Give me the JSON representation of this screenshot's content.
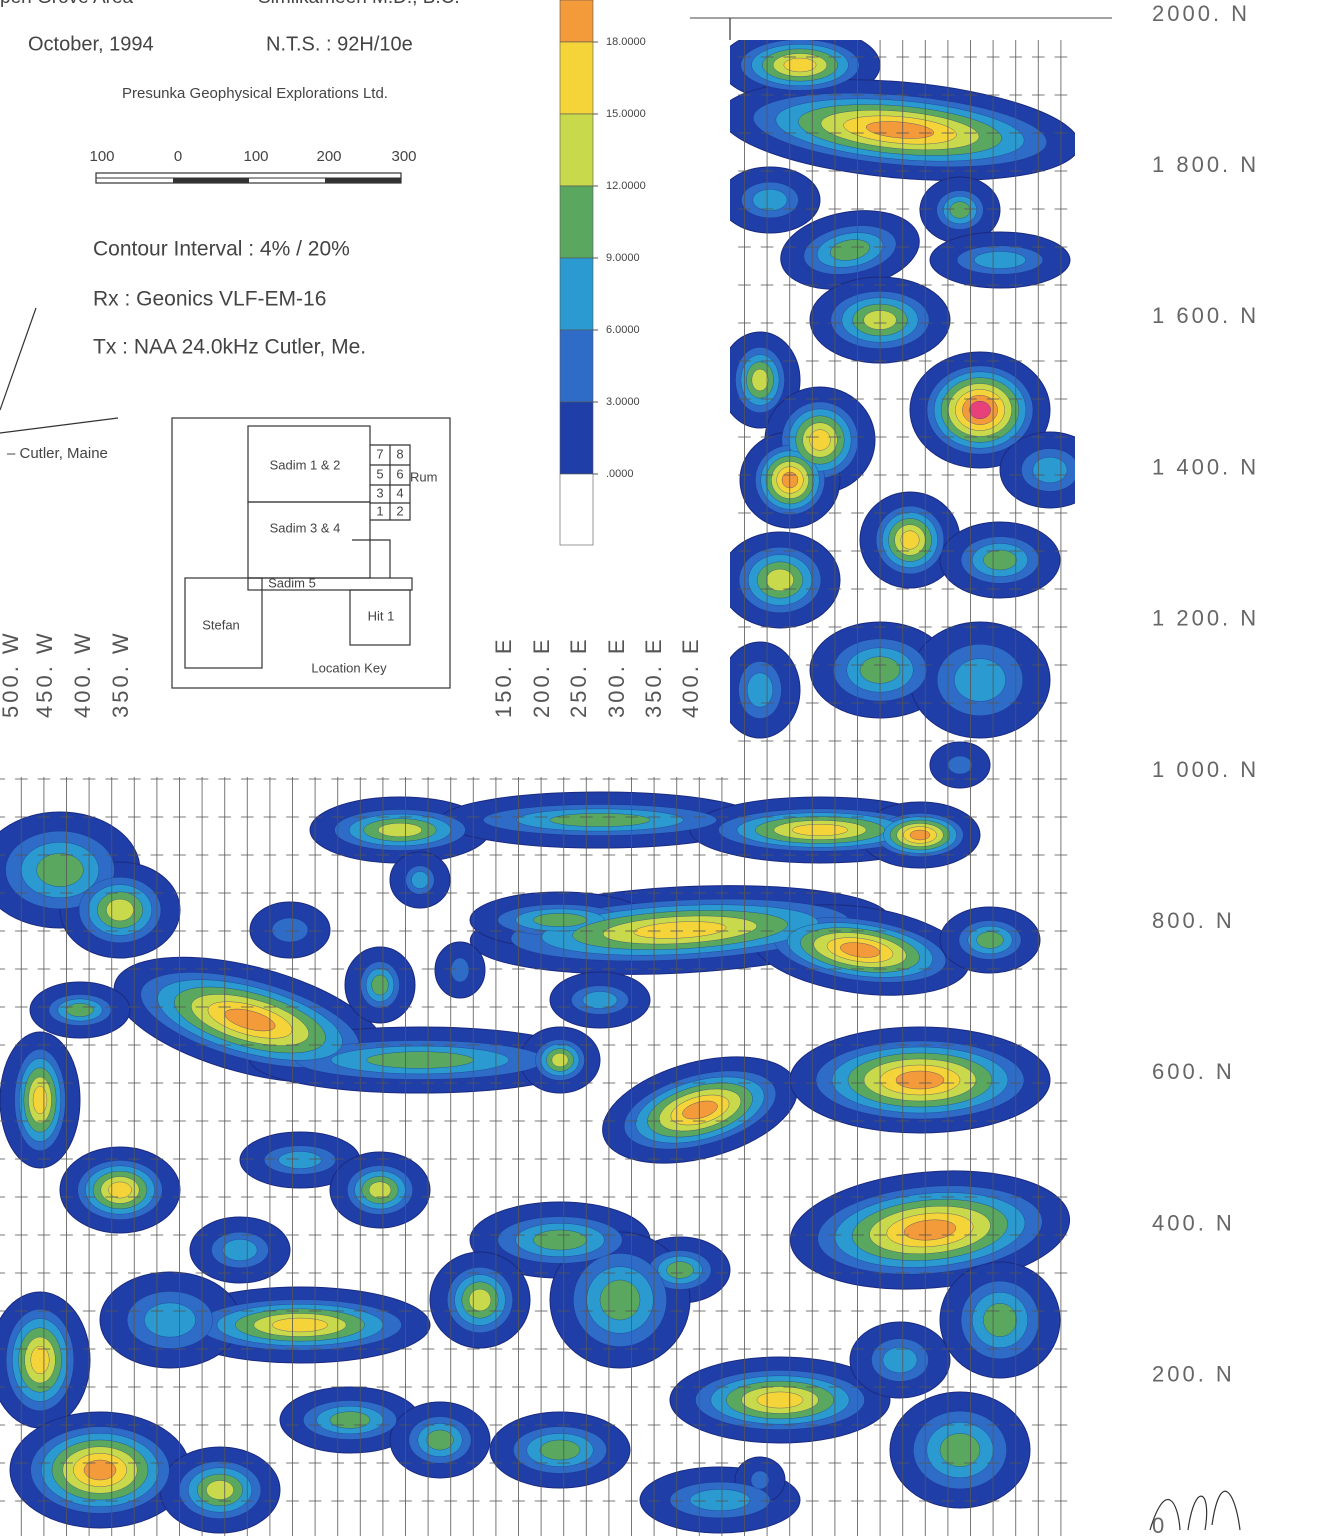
{
  "header": {
    "area": "pen Grove Area",
    "district": "Similkameen M.D., B.C.",
    "date": "October, 1994",
    "nts": "N.T.S. :  92H/10e",
    "company": "Presunka Geophysical Explorations Ltd."
  },
  "scale_bar": {
    "labels": [
      "100",
      "0",
      "100",
      "200",
      "300"
    ]
  },
  "survey": {
    "contour_interval": "Contour Interval :  4% / 20%",
    "rx": "Rx :  Geonics VLF-EM-16",
    "tx": "Tx :  NAA  24.0kHz  Cutler, Me.",
    "station": "– Cutler, Maine"
  },
  "legend": {
    "colors": [
      "#f39a3a",
      "#f5d43a",
      "#c9d94c",
      "#5aa860",
      "#2a9ad0",
      "#2e6cc8",
      "#1f3ea8",
      "#ffffff"
    ],
    "ticks": [
      {
        "value": 18,
        "label": "18.0000"
      },
      {
        "value": 15,
        "label": "15.0000"
      },
      {
        "value": 12,
        "label": "12.0000"
      },
      {
        "value": 9,
        "label": "9.0000"
      },
      {
        "value": 6,
        "label": "6.0000"
      },
      {
        "value": 3,
        "label": "3.0000"
      },
      {
        "value": 0,
        "label": ".0000"
      }
    ]
  },
  "location_key": {
    "title": "Location Key",
    "sadim_12": "Sadim 1 & 2",
    "sadim_34": "Sadim 3 & 4",
    "sadim_5": "Sadim 5",
    "stefan": "Stefan",
    "hit": "Hit 1",
    "rum": "Rum",
    "cells": [
      "7",
      "8",
      "5",
      "6",
      "3",
      "4",
      "1",
      "2"
    ]
  },
  "west_lines": [
    "500. W",
    "450. W",
    "400. W",
    "350. W"
  ],
  "east_lines": [
    "150. E",
    "200. E",
    "250. E",
    "300. E",
    "350. E",
    "400. E"
  ],
  "north_lines": [
    "2000. N",
    "1 800. N",
    "1 600. N",
    "1 400. N",
    "1 200. N",
    "1 000. N",
    "800. N",
    "600. N",
    "400. N",
    "200. N",
    "0"
  ]
}
